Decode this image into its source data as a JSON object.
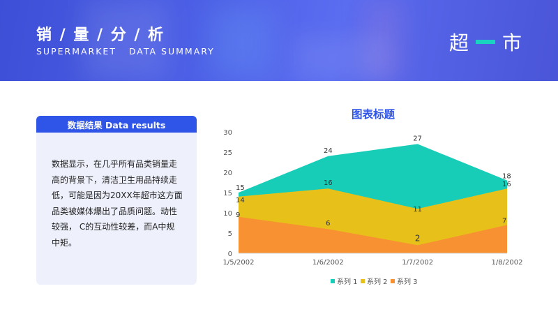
{
  "header": {
    "title": "销 / 量 / 分 / 析",
    "subtitle": "SUPERMARKET   DATA SUMMARY",
    "brand_left": "超",
    "brand_right": "市"
  },
  "panel": {
    "title": "数据结果  Data results",
    "body": "数据显示，在几乎所有品类销量走高的背景下，清洁卫生用品持续走低，可能是因为20XX年超市这方面品类被媒体爆出了品质问题。动性较强， C的互动性较差，而A中规中矩。"
  },
  "chart_data": {
    "type": "area",
    "title": "图表标题",
    "categories": [
      "1/5/2002",
      "1/6/2002",
      "1/7/2002",
      "1/8/2002"
    ],
    "ylim": [
      0,
      30
    ],
    "yticks": [
      "0",
      "5",
      "10",
      "15",
      "20",
      "25",
      "30"
    ],
    "grid": false,
    "legend_position": "bottom",
    "series": [
      {
        "name": "系列 1",
        "values": [
          15,
          24,
          27,
          18
        ],
        "color": "#17cdb8"
      },
      {
        "name": "系列 2",
        "values": [
          14,
          16,
          11,
          16
        ],
        "color": "#e8c01a"
      },
      {
        "name": "系列 3",
        "values": [
          9,
          6,
          2,
          7
        ],
        "color": "#f79131"
      }
    ],
    "data_labels": [
      [
        "15",
        "24",
        "27",
        "18"
      ],
      [
        "14",
        "16",
        "11",
        "16"
      ],
      [
        "9",
        "6",
        "2",
        "7"
      ]
    ]
  }
}
